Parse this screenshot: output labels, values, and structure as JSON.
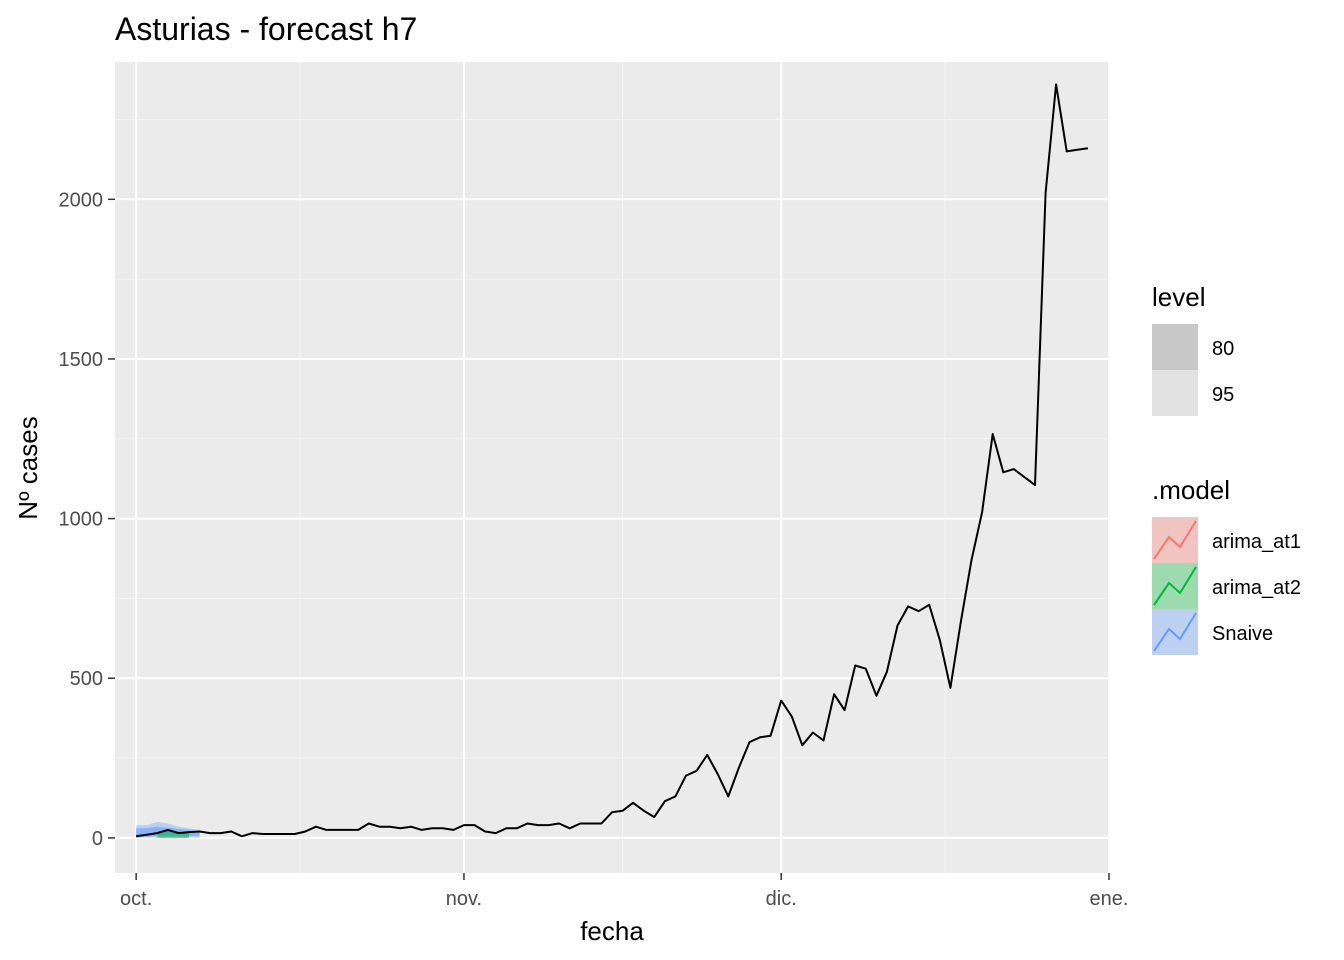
{
  "chart_data": {
    "type": "line",
    "title": "Asturias - forecast h7",
    "xlabel": "fecha",
    "ylabel": "Nº cases",
    "x_ticks": [
      "oct.",
      "nov.",
      "dic.",
      "ene."
    ],
    "y_ticks": [
      0,
      500,
      1000,
      1500,
      2000
    ],
    "ylim": [
      -110,
      2430
    ],
    "xlim": [
      "2020-09-29",
      "2021-01-01"
    ],
    "grid": true,
    "legend_position": "right",
    "legends": [
      {
        "title": "level",
        "entries": [
          {
            "label": "80",
            "color": "#c8c8c8"
          },
          {
            "label": "95",
            "color": "#e2e2e2"
          }
        ]
      },
      {
        "title": ".model",
        "entries": [
          {
            "label": "arima_at1",
            "color": "#f8766d"
          },
          {
            "label": "arima_at2",
            "color": "#00ba38"
          },
          {
            "label": "Snaive",
            "color": "#619cff"
          }
        ]
      }
    ],
    "series": [
      {
        "name": "",
        "color": "#000000",
        "x": [
          "2020-10-01",
          "2020-10-02",
          "2020-10-03",
          "2020-10-04",
          "2020-10-05",
          "2020-10-06",
          "2020-10-07",
          "2020-10-08",
          "2020-10-09",
          "2020-10-10",
          "2020-10-11",
          "2020-10-12",
          "2020-10-13",
          "2020-10-14",
          "2020-10-15",
          "2020-10-16",
          "2020-10-17",
          "2020-10-18",
          "2020-10-19",
          "2020-10-20",
          "2020-10-21",
          "2020-10-22",
          "2020-10-23",
          "2020-10-24",
          "2020-10-25",
          "2020-10-26",
          "2020-10-27",
          "2020-10-28",
          "2020-10-29",
          "2020-10-30",
          "2020-10-31",
          "2020-11-01",
          "2020-11-02",
          "2020-11-03",
          "2020-11-04",
          "2020-11-05",
          "2020-11-06",
          "2020-11-07",
          "2020-11-08",
          "2020-11-09",
          "2020-11-10",
          "2020-11-11",
          "2020-11-12",
          "2020-11-13",
          "2020-11-14",
          "2020-11-15",
          "2020-11-16",
          "2020-11-17",
          "2020-11-18",
          "2020-11-19",
          "2020-11-20",
          "2020-11-21",
          "2020-11-22",
          "2020-11-23",
          "2020-11-24",
          "2020-11-25",
          "2020-11-26",
          "2020-11-27",
          "2020-11-28",
          "2020-11-29",
          "2020-11-30",
          "2020-12-01",
          "2020-12-02",
          "2020-12-03",
          "2020-12-04",
          "2020-12-05",
          "2020-12-06",
          "2020-12-07",
          "2020-12-08",
          "2020-12-09",
          "2020-12-10",
          "2020-12-11",
          "2020-12-12",
          "2020-12-13",
          "2020-12-14",
          "2020-12-15",
          "2020-12-16",
          "2020-12-17",
          "2020-12-18",
          "2020-12-19",
          "2020-12-20",
          "2020-12-21",
          "2020-12-22",
          "2020-12-23",
          "2020-12-24",
          "2020-12-25",
          "2020-12-26",
          "2020-12-27",
          "2020-12-28",
          "2020-12-29",
          "2020-12-30"
        ],
        "y": [
          5,
          10,
          15,
          25,
          15,
          18,
          20,
          15,
          15,
          20,
          5,
          15,
          12,
          12,
          12,
          12,
          20,
          35,
          25,
          25,
          25,
          25,
          45,
          35,
          35,
          30,
          35,
          25,
          30,
          30,
          25,
          40,
          40,
          20,
          15,
          30,
          30,
          45,
          40,
          40,
          45,
          30,
          45,
          45,
          45,
          80,
          85,
          110,
          85,
          65,
          115,
          130,
          195,
          210,
          260,
          200,
          130,
          220,
          300,
          315,
          320,
          430,
          380,
          290,
          330,
          305,
          450,
          400,
          540,
          530,
          445,
          520,
          665,
          725,
          710,
          730,
          620,
          470,
          680,
          870,
          1020,
          1265,
          1145,
          1155,
          1130,
          1105,
          2020,
          2360,
          2150,
          2155,
          2160
        ]
      }
    ],
    "bands": [
      {
        "model": "Snaive",
        "level": "95",
        "x": [
          "2020-10-01",
          "2020-10-02",
          "2020-10-03",
          "2020-10-04",
          "2020-10-05",
          "2020-10-06",
          "2020-10-07"
        ],
        "lower": [
          0,
          0,
          0,
          0,
          0,
          0,
          0
        ],
        "upper": [
          40,
          40,
          50,
          45,
          35,
          30,
          25
        ]
      },
      {
        "model": "Snaive",
        "level": "80",
        "x": [
          "2020-10-01",
          "2020-10-02",
          "2020-10-03",
          "2020-10-04",
          "2020-10-05",
          "2020-10-06",
          "2020-10-07"
        ],
        "lower": [
          2,
          4,
          5,
          6,
          6,
          6,
          6
        ],
        "upper": [
          30,
          30,
          35,
          32,
          28,
          25,
          20
        ]
      },
      {
        "model": "arima_at2",
        "level": "80",
        "x": [
          "2020-10-03",
          "2020-10-04",
          "2020-10-05",
          "2020-10-06"
        ],
        "lower": [
          0,
          0,
          0,
          0
        ],
        "upper": [
          20,
          25,
          20,
          15
        ]
      }
    ]
  }
}
